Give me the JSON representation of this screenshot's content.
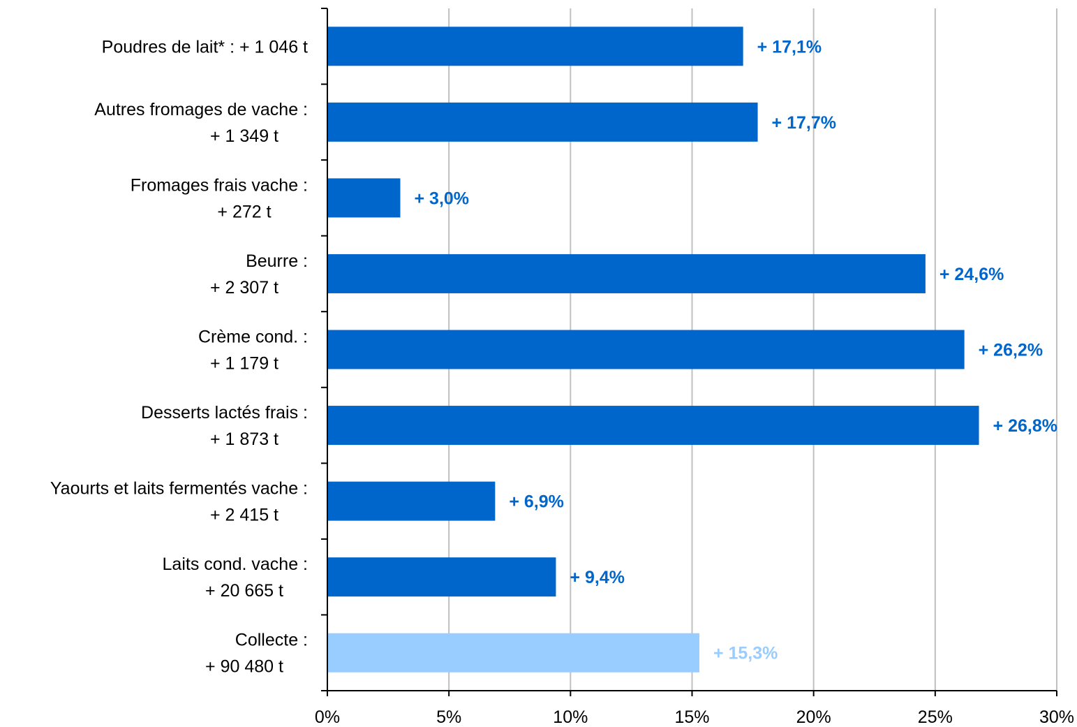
{
  "chart_data": {
    "type": "bar",
    "orientation": "horizontal",
    "categories": [
      [
        "Poudres de lait* :  + 1 046 t"
      ],
      [
        "Autres fromages de vache :",
        "+ 1 349 t"
      ],
      [
        "Fromages frais vache :",
        "+ 272 t"
      ],
      [
        "Beurre :",
        "+ 2 307 t"
      ],
      [
        "Crème cond. :",
        "+ 1 179 t"
      ],
      [
        "Desserts lactés frais :",
        "+ 1 873 t"
      ],
      [
        "Yaourts et laits fermentés vache :",
        "+ 2 415 t"
      ],
      [
        "Laits cond. vache :",
        "+ 20 665 t"
      ],
      [
        "Collecte :",
        "+ 90 480 t"
      ]
    ],
    "values": [
      17.1,
      17.7,
      3.0,
      24.6,
      26.2,
      26.8,
      6.9,
      9.4,
      15.3
    ],
    "data_labels": [
      "+ 17,1%",
      "+ 17,7%",
      "+ 3,0%",
      "+ 24,6%",
      "+ 26,2%",
      "+ 26,8%",
      "+ 6,9%",
      "+ 9,4%",
      "+ 15,3%"
    ],
    "bar_colors": [
      "#0066cc",
      "#0066cc",
      "#0066cc",
      "#0066cc",
      "#0066cc",
      "#0066cc",
      "#0066cc",
      "#0066cc",
      "#99ccff"
    ],
    "x_ticks": [
      0,
      5,
      10,
      15,
      20,
      25,
      30
    ],
    "x_tick_labels": [
      "0%",
      "5%",
      "10%",
      "15%",
      "20%",
      "25%",
      "30%"
    ],
    "xlim": [
      0,
      30
    ],
    "grid": "vertical",
    "legend": "none",
    "title": "",
    "xlabel": "",
    "ylabel": "",
    "colors": {
      "bar": "#0066cc",
      "highlight_bar": "#99ccff",
      "gridline": "#c0c0c0",
      "axis": "#000000"
    }
  }
}
